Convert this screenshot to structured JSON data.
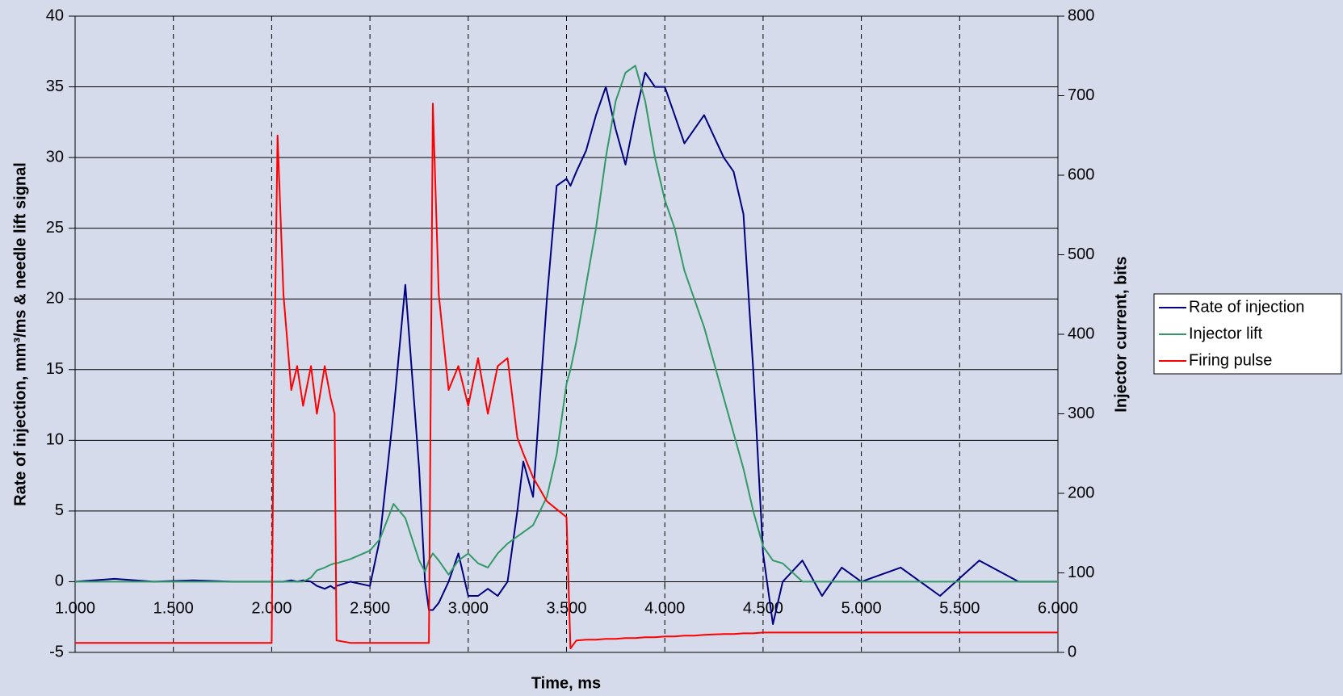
{
  "chart_data": {
    "type": "line",
    "xlabel": "Time, ms",
    "ylabel": "Rate of injection, mm³/ms & needle lift signal",
    "y2label": "Injector current, bits",
    "x": [
      1.0,
      1.2,
      1.4,
      1.6,
      1.8,
      2.0,
      2.01,
      2.03,
      2.06,
      2.1,
      2.13,
      2.16,
      2.2,
      2.23,
      2.27,
      2.3,
      2.32,
      2.33,
      2.4,
      2.5,
      2.55,
      2.62,
      2.68,
      2.75,
      2.78,
      2.8,
      2.82,
      2.85,
      2.9,
      2.95,
      3.0,
      3.05,
      3.1,
      3.15,
      3.2,
      3.25,
      3.28,
      3.33,
      3.4,
      3.45,
      3.5,
      3.52,
      3.55,
      3.6,
      3.65,
      3.7,
      3.75,
      3.8,
      3.85,
      3.9,
      3.95,
      4.0,
      4.05,
      4.1,
      4.15,
      4.2,
      4.3,
      4.35,
      4.4,
      4.45,
      4.5,
      4.55,
      4.6,
      4.7,
      4.8,
      4.9,
      5.0,
      5.2,
      5.4,
      5.6,
      5.8,
      6.0
    ],
    "series": [
      {
        "name": "Rate of injection",
        "color": "#000080",
        "values": [
          0,
          0.2,
          0,
          0.1,
          0,
          0,
          0,
          0,
          0,
          0.1,
          0,
          0.1,
          0,
          -0.3,
          -0.5,
          -0.3,
          -0.5,
          -0.3,
          0,
          -0.3,
          3,
          12,
          21,
          8,
          0,
          -2,
          -2,
          -1.5,
          0,
          2,
          -1,
          -1,
          -0.5,
          -1,
          0,
          5,
          8.5,
          6,
          20,
          28,
          28.5,
          28,
          29,
          30.5,
          33,
          35,
          32,
          29.5,
          33,
          36,
          35,
          35,
          33,
          31,
          32,
          33,
          30,
          29,
          26,
          15,
          2,
          -3,
          0,
          1.5,
          -1,
          1,
          0,
          1,
          -1,
          1.5,
          0,
          0
        ]
      },
      {
        "name": "Injector lift",
        "color": "#339966",
        "values": [
          0,
          0,
          0,
          0,
          0,
          0,
          0,
          0,
          0,
          0,
          0,
          0,
          0.3,
          0.8,
          1,
          1.2,
          1.3,
          1.3,
          1.6,
          2.2,
          3,
          5.5,
          4.5,
          1.5,
          0.7,
          1.5,
          2,
          1.5,
          0.5,
          1.5,
          2,
          1.3,
          1,
          2,
          2.7,
          3.2,
          3.5,
          4,
          6,
          9,
          14,
          15,
          17,
          21,
          25,
          30,
          34,
          36,
          36.5,
          34,
          30,
          27,
          25,
          22,
          20,
          18,
          13,
          10.5,
          8,
          5,
          2.5,
          1.5,
          1.3,
          0,
          0,
          0,
          0,
          0,
          0,
          0,
          0,
          0
        ]
      },
      {
        "name": "Firing pulse",
        "color": "#ff0000",
        "axis": "y2",
        "values": [
          12,
          12,
          12,
          12,
          12,
          12,
          300,
          650,
          450,
          330,
          360,
          310,
          360,
          300,
          360,
          320,
          300,
          15,
          12,
          12,
          12,
          12,
          12,
          12,
          12,
          12,
          690,
          450,
          330,
          360,
          310,
          370,
          300,
          360,
          370,
          270,
          250,
          220,
          190,
          180,
          170,
          5,
          15,
          16,
          16,
          17,
          17,
          18,
          18,
          19,
          19,
          20,
          20,
          21,
          21,
          22,
          23,
          23,
          24,
          24,
          25,
          25,
          25,
          25,
          25,
          25,
          25,
          25,
          25,
          25,
          25,
          25
        ]
      }
    ],
    "xlim": [
      1.0,
      6.0
    ],
    "xticks": [
      {
        "value": 1.0,
        "label": "1.000"
      },
      {
        "value": 1.5,
        "label": "1.500"
      },
      {
        "value": 2.0,
        "label": "2.000"
      },
      {
        "value": 2.5,
        "label": "2.500"
      },
      {
        "value": 3.0,
        "label": "3.000"
      },
      {
        "value": 3.5,
        "label": "3.500"
      },
      {
        "value": 4.0,
        "label": "4.000"
      },
      {
        "value": 4.5,
        "label": "4.500"
      },
      {
        "value": 5.0,
        "label": "5.000"
      },
      {
        "value": 5.5,
        "label": "5.500"
      },
      {
        "value": 6.0,
        "label": "6.000"
      }
    ],
    "ylim": [
      -5,
      40
    ],
    "yticks": [
      -5,
      0,
      5,
      10,
      15,
      20,
      25,
      30,
      35,
      40
    ],
    "y2lim": [
      0,
      800
    ],
    "y2ticks": [
      0,
      100,
      200,
      300,
      400,
      500,
      600,
      700,
      800
    ],
    "grid": true,
    "legend": "right"
  }
}
